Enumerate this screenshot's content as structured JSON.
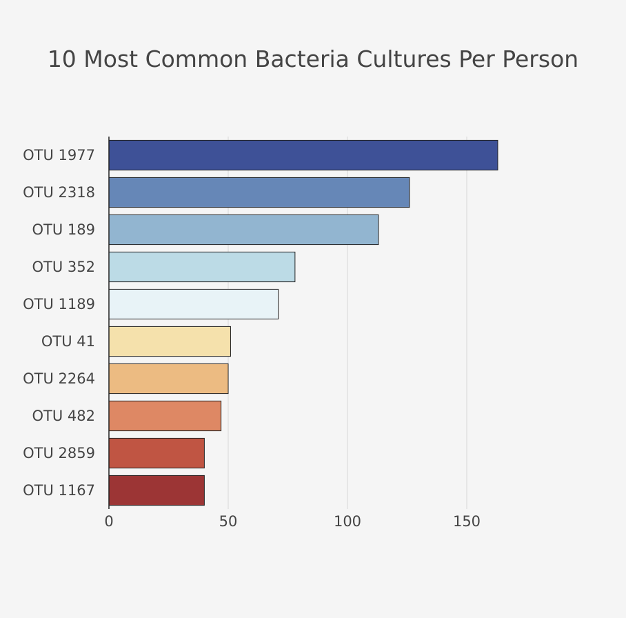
{
  "chart_data": {
    "type": "bar",
    "orientation": "horizontal",
    "title": "10 Most Common Bacteria Cultures Per Person",
    "xlabel": "",
    "ylabel": "",
    "categories": [
      "OTU 1977",
      "OTU 2318",
      "OTU 189",
      "OTU 352",
      "OTU 1189",
      "OTU 41",
      "OTU 2264",
      "OTU 482",
      "OTU 2859",
      "OTU 1167"
    ],
    "values": [
      163,
      126,
      113,
      78,
      71,
      51,
      50,
      47,
      40,
      40
    ],
    "bar_colors": [
      "#3e5197",
      "#6687b7",
      "#92b5d0",
      "#bcdbe6",
      "#e8f3f7",
      "#f5e1ac",
      "#ecbb82",
      "#de8864",
      "#c05543",
      "#9c3535"
    ],
    "xlim": [
      0,
      180
    ],
    "xticks": [
      0,
      50,
      100,
      150
    ],
    "grid": true,
    "legend": "none"
  }
}
